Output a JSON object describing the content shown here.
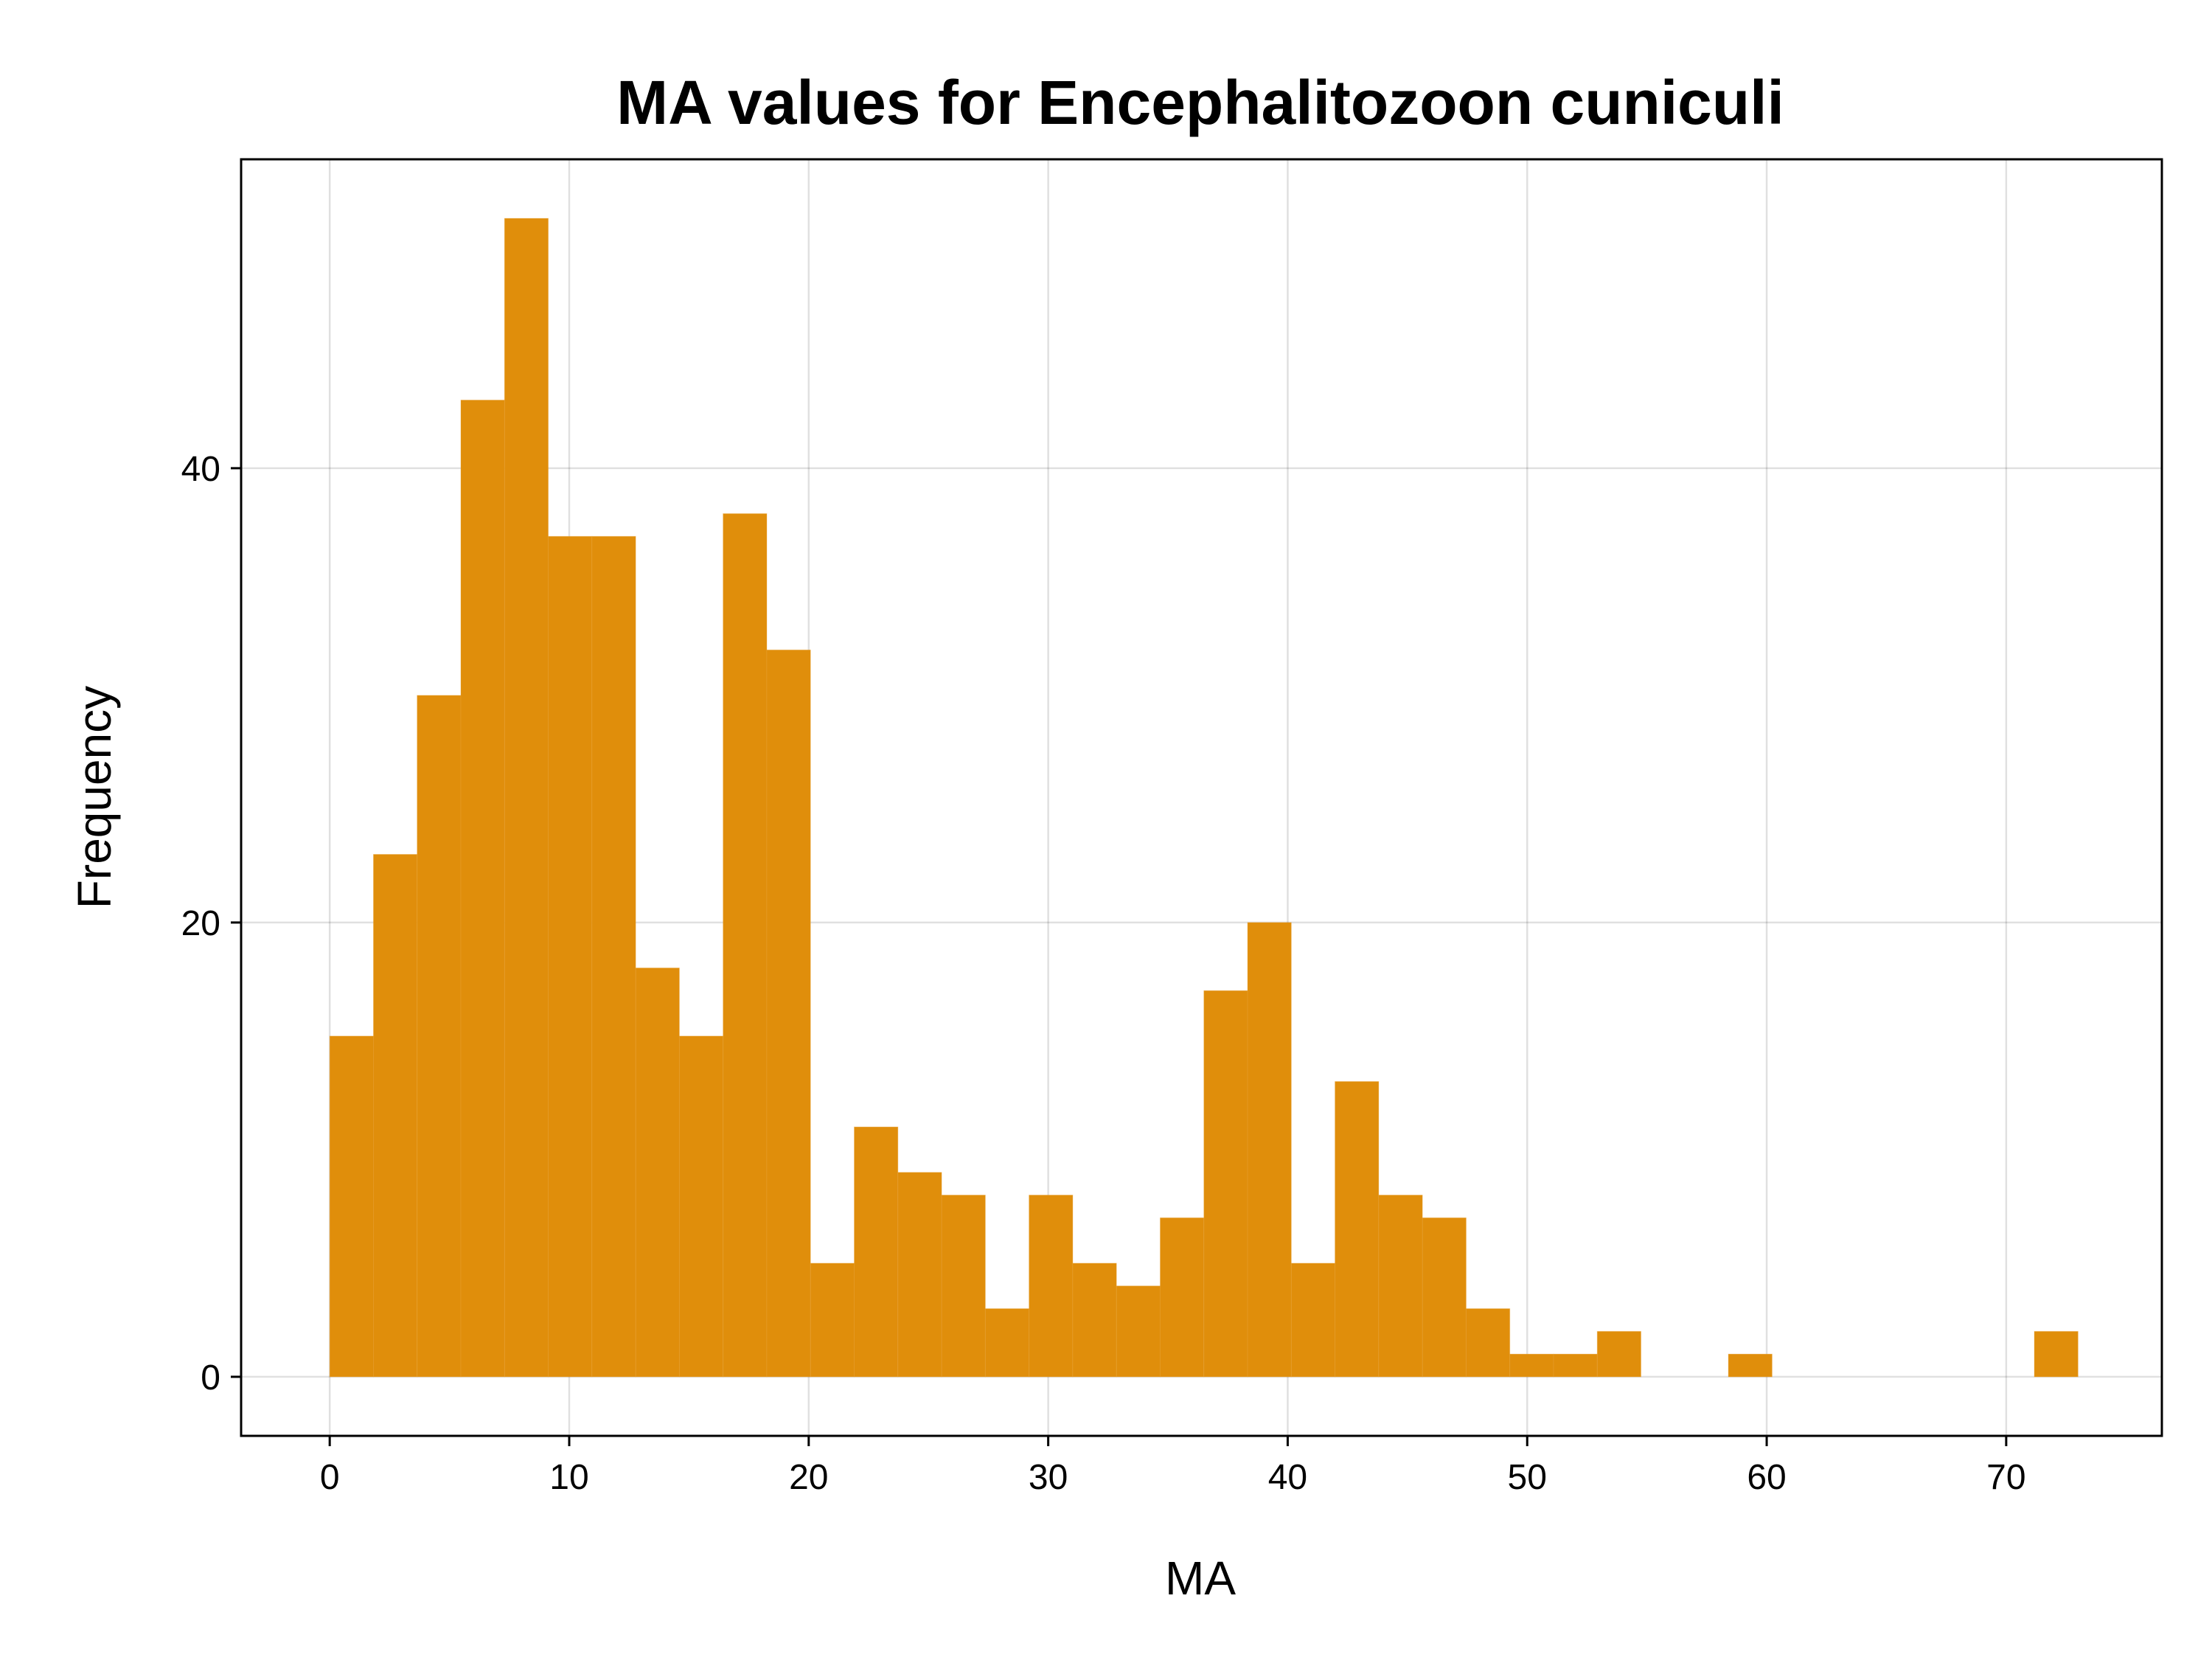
{
  "chart_data": {
    "type": "bar",
    "title": "MA values for Encephalitozoon cuniculi",
    "xlabel": "MA",
    "ylabel": "Frequency",
    "bar_color": "#e08e0b",
    "grid": true,
    "legend": "none",
    "xlim": [
      -3.7,
      76.5
    ],
    "ylim": [
      -2.6,
      53.6
    ],
    "xticks": [
      0,
      10,
      20,
      30,
      40,
      50,
      60,
      70
    ],
    "yticks": [
      0,
      20,
      40
    ],
    "bin_width": 1.825,
    "bins": [
      {
        "start": 0.0,
        "end": 1.825,
        "count": 15
      },
      {
        "start": 1.825,
        "end": 3.65,
        "count": 23
      },
      {
        "start": 3.65,
        "end": 5.475,
        "count": 30
      },
      {
        "start": 5.475,
        "end": 7.3,
        "count": 43
      },
      {
        "start": 7.3,
        "end": 9.125,
        "count": 51
      },
      {
        "start": 9.125,
        "end": 10.95,
        "count": 37
      },
      {
        "start": 10.95,
        "end": 12.775,
        "count": 37
      },
      {
        "start": 12.775,
        "end": 14.6,
        "count": 18
      },
      {
        "start": 14.6,
        "end": 16.425,
        "count": 15
      },
      {
        "start": 16.425,
        "end": 18.25,
        "count": 38
      },
      {
        "start": 18.25,
        "end": 20.075,
        "count": 32
      },
      {
        "start": 20.075,
        "end": 21.9,
        "count": 5
      },
      {
        "start": 21.9,
        "end": 23.725,
        "count": 11
      },
      {
        "start": 23.725,
        "end": 25.55,
        "count": 9
      },
      {
        "start": 25.55,
        "end": 27.375,
        "count": 8
      },
      {
        "start": 27.375,
        "end": 29.2,
        "count": 3
      },
      {
        "start": 29.2,
        "end": 31.025,
        "count": 8
      },
      {
        "start": 31.025,
        "end": 32.85,
        "count": 5
      },
      {
        "start": 32.85,
        "end": 34.675,
        "count": 4
      },
      {
        "start": 34.675,
        "end": 36.5,
        "count": 7
      },
      {
        "start": 36.5,
        "end": 38.325,
        "count": 17
      },
      {
        "start": 38.325,
        "end": 40.15,
        "count": 20
      },
      {
        "start": 40.15,
        "end": 41.975,
        "count": 5
      },
      {
        "start": 41.975,
        "end": 43.8,
        "count": 13
      },
      {
        "start": 43.8,
        "end": 45.625,
        "count": 8
      },
      {
        "start": 45.625,
        "end": 47.45,
        "count": 7
      },
      {
        "start": 47.45,
        "end": 49.275,
        "count": 3
      },
      {
        "start": 49.275,
        "end": 51.1,
        "count": 1
      },
      {
        "start": 51.1,
        "end": 52.925,
        "count": 1
      },
      {
        "start": 52.925,
        "end": 54.75,
        "count": 2
      },
      {
        "start": 58.4,
        "end": 60.225,
        "count": 1
      },
      {
        "start": 71.175,
        "end": 73.0,
        "count": 2
      }
    ]
  }
}
